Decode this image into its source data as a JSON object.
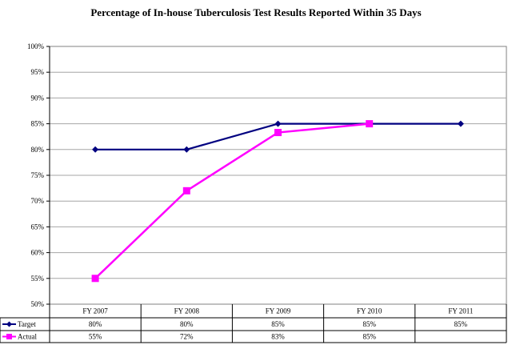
{
  "chart_data": {
    "type": "line",
    "title": "Percentage of In-house Tuberculosis Test Results Reported Within 35 Days",
    "xlabel": "",
    "ylabel": "",
    "categories": [
      "FY 2007",
      "FY 2008",
      "FY 2009",
      "FY 2010",
      "FY 2011"
    ],
    "ylim": [
      50,
      100
    ],
    "yticks": [
      50,
      55,
      60,
      65,
      70,
      75,
      80,
      85,
      90,
      95,
      100
    ],
    "ytick_labels": [
      "50%",
      "55%",
      "60%",
      "65%",
      "70%",
      "75%",
      "80%",
      "85%",
      "90%",
      "95%",
      "100%"
    ],
    "grid": true,
    "legend": "data-table",
    "series": [
      {
        "name": "Target",
        "values": [
          80,
          80,
          85,
          85,
          85
        ],
        "labels": [
          "80%",
          "80%",
          "85%",
          "85%",
          "85%"
        ],
        "color": "#000080",
        "marker": "diamond"
      },
      {
        "name": "Actual",
        "values": [
          55,
          72,
          83.3,
          85,
          null
        ],
        "labels": [
          "55%",
          "72%",
          "83%",
          "85%",
          ""
        ],
        "color": "#ff00ff",
        "marker": "square"
      }
    ]
  }
}
